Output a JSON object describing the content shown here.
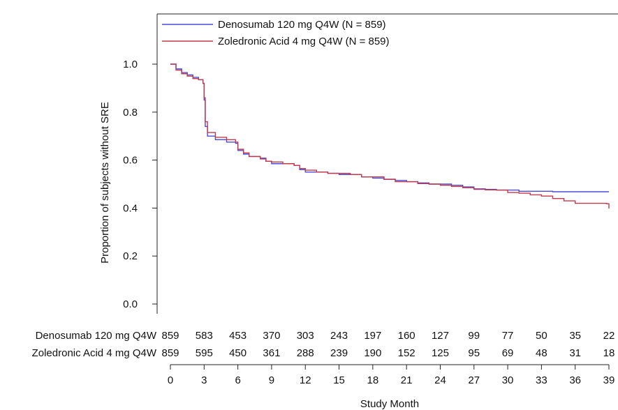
{
  "chart_data": {
    "type": "line",
    "title": "",
    "xlabel": "Study Month",
    "ylabel": "Proportion of subjects without SRE",
    "xlim": [
      0,
      39
    ],
    "ylim": [
      0,
      1
    ],
    "x_ticks": [
      0,
      3,
      6,
      9,
      12,
      15,
      18,
      21,
      24,
      27,
      30,
      33,
      36,
      39
    ],
    "y_ticks": [
      0.0,
      0.2,
      0.4,
      0.6,
      0.8,
      1.0
    ],
    "x_tick_labels": [
      "0",
      "3",
      "6",
      "9",
      "12",
      "15",
      "18",
      "21",
      "24",
      "27",
      "30",
      "33",
      "36",
      "39"
    ],
    "y_tick_labels": [
      "0.0",
      "0.2",
      "0.4",
      "0.6",
      "0.8",
      "1.0"
    ],
    "legend_position": "top-left",
    "grid": false,
    "series": [
      {
        "name": "Denosumab 120 mg Q4W (N = 859)",
        "color": "#4a4ad8",
        "points": [
          [
            0,
            1.0
          ],
          [
            0.5,
            0.98
          ],
          [
            1,
            0.965
          ],
          [
            1.5,
            0.955
          ],
          [
            2,
            0.945
          ],
          [
            2.5,
            0.935
          ],
          [
            2.9,
            0.92
          ],
          [
            3.0,
            0.85
          ],
          [
            3.1,
            0.74
          ],
          [
            3.3,
            0.7
          ],
          [
            4,
            0.685
          ],
          [
            5,
            0.675
          ],
          [
            5.8,
            0.67
          ],
          [
            6,
            0.64
          ],
          [
            6.5,
            0.625
          ],
          [
            7,
            0.615
          ],
          [
            8,
            0.608
          ],
          [
            8.5,
            0.595
          ],
          [
            9,
            0.585
          ],
          [
            10,
            0.585
          ],
          [
            11,
            0.578
          ],
          [
            11.5,
            0.56
          ],
          [
            12,
            0.55
          ],
          [
            13,
            0.55
          ],
          [
            14,
            0.545
          ],
          [
            15,
            0.54
          ],
          [
            16,
            0.54
          ],
          [
            17,
            0.53
          ],
          [
            18,
            0.525
          ],
          [
            19,
            0.52
          ],
          [
            20,
            0.515
          ],
          [
            21,
            0.51
          ],
          [
            22,
            0.505
          ],
          [
            23,
            0.5
          ],
          [
            24,
            0.5
          ],
          [
            25,
            0.495
          ],
          [
            26,
            0.488
          ],
          [
            27,
            0.48
          ],
          [
            28,
            0.478
          ],
          [
            29,
            0.475
          ],
          [
            30,
            0.475
          ],
          [
            31,
            0.47
          ],
          [
            32,
            0.47
          ],
          [
            33,
            0.47
          ],
          [
            34,
            0.468
          ],
          [
            35,
            0.468
          ],
          [
            36,
            0.468
          ],
          [
            39,
            0.468
          ]
        ]
      },
      {
        "name": "Zoledronic Acid 4 mg Q4W (N = 859)",
        "color": "#c0394a",
        "points": [
          [
            0,
            1.0
          ],
          [
            0.5,
            0.975
          ],
          [
            1,
            0.96
          ],
          [
            1.5,
            0.95
          ],
          [
            2,
            0.94
          ],
          [
            2.5,
            0.935
          ],
          [
            2.9,
            0.92
          ],
          [
            3.0,
            0.86
          ],
          [
            3.1,
            0.76
          ],
          [
            3.3,
            0.715
          ],
          [
            4,
            0.695
          ],
          [
            5,
            0.685
          ],
          [
            5.8,
            0.675
          ],
          [
            6,
            0.645
          ],
          [
            6.5,
            0.63
          ],
          [
            7,
            0.615
          ],
          [
            8,
            0.605
          ],
          [
            8.5,
            0.595
          ],
          [
            9,
            0.592
          ],
          [
            10,
            0.585
          ],
          [
            11,
            0.578
          ],
          [
            11.5,
            0.565
          ],
          [
            12,
            0.558
          ],
          [
            13,
            0.55
          ],
          [
            14,
            0.545
          ],
          [
            15,
            0.545
          ],
          [
            16,
            0.54
          ],
          [
            17,
            0.53
          ],
          [
            18,
            0.53
          ],
          [
            19,
            0.52
          ],
          [
            20,
            0.51
          ],
          [
            21,
            0.51
          ],
          [
            22,
            0.502
          ],
          [
            23,
            0.5
          ],
          [
            24,
            0.495
          ],
          [
            25,
            0.49
          ],
          [
            26,
            0.485
          ],
          [
            27,
            0.478
          ],
          [
            28,
            0.476
          ],
          [
            29,
            0.475
          ],
          [
            30,
            0.465
          ],
          [
            31,
            0.462
          ],
          [
            32,
            0.455
          ],
          [
            33,
            0.45
          ],
          [
            34,
            0.44
          ],
          [
            35,
            0.43
          ],
          [
            36,
            0.42
          ],
          [
            38,
            0.42
          ],
          [
            38.8,
            0.418
          ],
          [
            39,
            0.398
          ]
        ]
      }
    ],
    "risk_table": {
      "times": [
        0,
        3,
        6,
        9,
        12,
        15,
        18,
        21,
        24,
        27,
        30,
        33,
        36,
        39
      ],
      "rows": [
        {
          "label": "Denosumab 120 mg Q4W",
          "counts": [
            "859",
            "583",
            "453",
            "370",
            "303",
            "243",
            "197",
            "160",
            "127",
            "99",
            "77",
            "50",
            "35",
            "22"
          ]
        },
        {
          "label": "Zoledronic Acid 4 mg Q4W",
          "counts": [
            "859",
            "595",
            "450",
            "361",
            "288",
            "239",
            "190",
            "152",
            "125",
            "95",
            "69",
            "48",
            "31",
            "18"
          ]
        }
      ]
    }
  }
}
